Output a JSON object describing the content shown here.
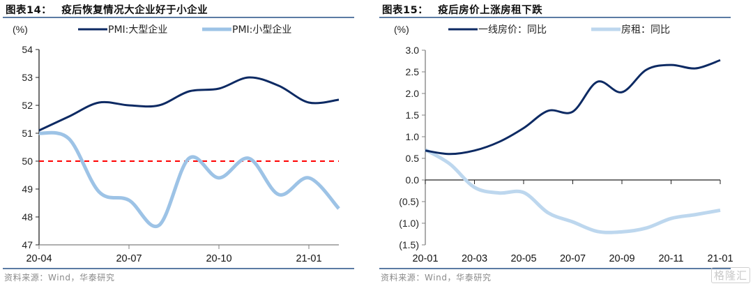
{
  "chart_data": [
    {
      "type": "line",
      "figure_label": "图表14：",
      "title": "疫后恢复情况大企业好于小企业",
      "ylabel": "(%)",
      "ylim": [
        47,
        54
      ],
      "yticks": [
        "54",
        "53",
        "52",
        "51",
        "50",
        "49",
        "48",
        "47"
      ],
      "ytick_values": [
        54,
        53,
        52,
        51,
        50,
        49,
        48,
        47
      ],
      "x": [
        "20-04",
        "20-05",
        "20-06",
        "20-07",
        "20-08",
        "20-09",
        "20-10",
        "20-11",
        "20-12",
        "21-01",
        "21-02"
      ],
      "xticks": [
        "20-04",
        "20-07",
        "20-10",
        "21-01"
      ],
      "reference_line": {
        "value": 50,
        "color": "#ff0000",
        "style": "dashed"
      },
      "legend_position": "top",
      "series": [
        {
          "name": "PMI:大型企业",
          "color": "#0d2a63",
          "values": [
            51.1,
            51.6,
            52.1,
            52.0,
            52.0,
            52.5,
            52.6,
            53.0,
            52.7,
            52.1,
            52.2
          ]
        },
        {
          "name": "PMI:小型企业",
          "color": "#9dc3e6",
          "values": [
            51.0,
            50.8,
            48.9,
            48.6,
            47.7,
            50.1,
            49.4,
            50.1,
            48.8,
            49.4,
            48.3
          ]
        }
      ],
      "source": "资料来源：Wind，华泰研究"
    },
    {
      "type": "line",
      "figure_label": "图表15：",
      "title": "疫后房价上涨房租下跌",
      "ylabel": "(%)",
      "ylim": [
        -1.5,
        3.0
      ],
      "yticks": [
        "3.0",
        "2.5",
        "2.0",
        "1.5",
        "1.0",
        "0.5",
        "0.0",
        "(0.5)",
        "(1.0)",
        "(1.5)"
      ],
      "ytick_values": [
        3.0,
        2.5,
        2.0,
        1.5,
        1.0,
        0.5,
        0.0,
        -0.5,
        -1.0,
        -1.5
      ],
      "x": [
        "20-01",
        "20-02",
        "20-03",
        "20-04",
        "20-05",
        "20-06",
        "20-07",
        "20-08",
        "20-09",
        "20-10",
        "20-11",
        "20-12",
        "21-01"
      ],
      "xticks": [
        "20-01",
        "20-03",
        "20-05",
        "20-07",
        "20-09",
        "20-11",
        "21-01"
      ],
      "legend_position": "top",
      "series": [
        {
          "name": "一线房价：同比",
          "color": "#0d2a63",
          "values": [
            0.68,
            0.6,
            0.68,
            0.88,
            1.2,
            1.6,
            1.58,
            2.27,
            2.03,
            2.55,
            2.66,
            2.58,
            2.77
          ]
        },
        {
          "name": "房租：同比",
          "color": "#bdd7ee",
          "values": [
            0.7,
            0.37,
            -0.17,
            -0.3,
            -0.29,
            -0.76,
            -0.97,
            -1.19,
            -1.2,
            -1.11,
            -0.89,
            -0.8,
            -0.7
          ]
        }
      ],
      "source": "资料来源：Wind，华泰研究"
    }
  ],
  "watermark": "格隆汇"
}
